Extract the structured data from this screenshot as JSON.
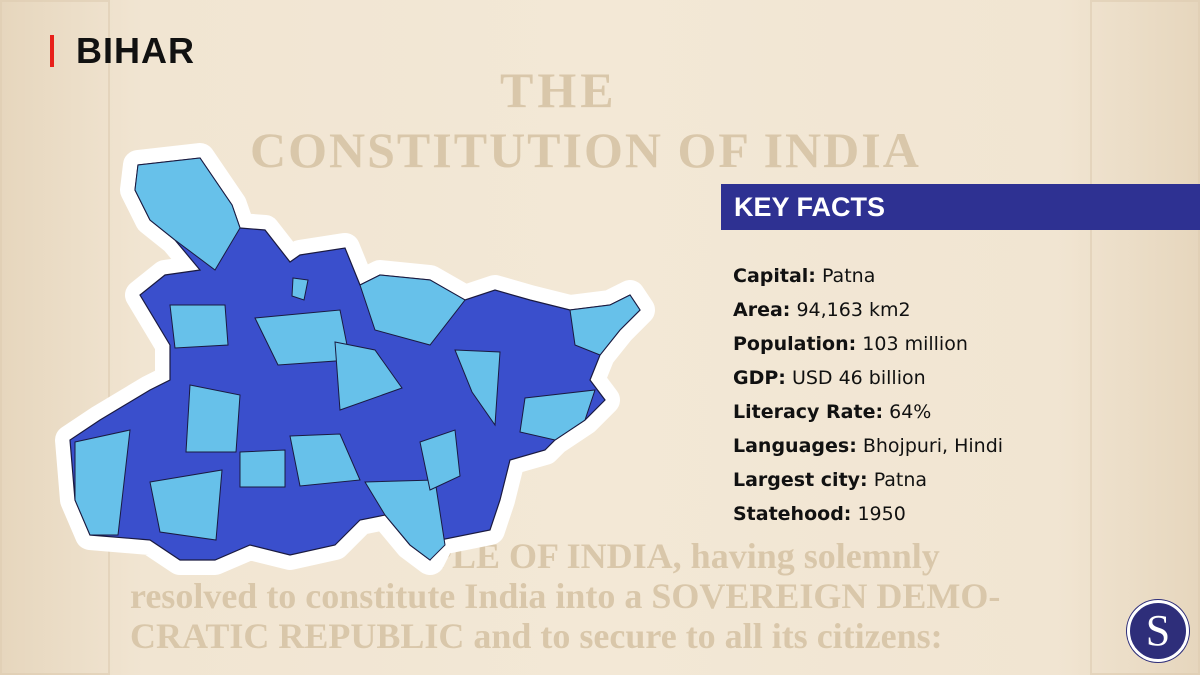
{
  "title": "BIHAR",
  "key_facts": {
    "heading": "KEY FACTS",
    "items": [
      {
        "label": "Capital:",
        "value": "Patna"
      },
      {
        "label": "Area:",
        "value": "94,163 km2"
      },
      {
        "label": "Population:",
        "value": "103 million"
      },
      {
        "label": "GDP:",
        "value": "USD 46 billion"
      },
      {
        "label": "Literacy Rate:",
        "value": "64%"
      },
      {
        "label": "Languages:",
        "value": "Bhojpuri, Hindi"
      },
      {
        "label": "Largest city:",
        "value": "Patna"
      },
      {
        "label": "Statehood:",
        "value": "1950"
      }
    ]
  },
  "background_text": {
    "line1": "THE",
    "line2": "CONSTITUTION OF INDIA",
    "line3": "PLE OF INDIA, having solemnly",
    "line4": "resolved to constitute India into a SOVEREIGN DEMO-",
    "line5": "CRATIC REPUBLIC and to secure to all its citizens:"
  },
  "logo": {
    "letter": "S",
    "color": "#2e2e7a"
  },
  "colors": {
    "accent": "#e8201a",
    "header": "#2e3192",
    "district_dark": "#3a4fcc",
    "district_light": "#67c1ea"
  }
}
